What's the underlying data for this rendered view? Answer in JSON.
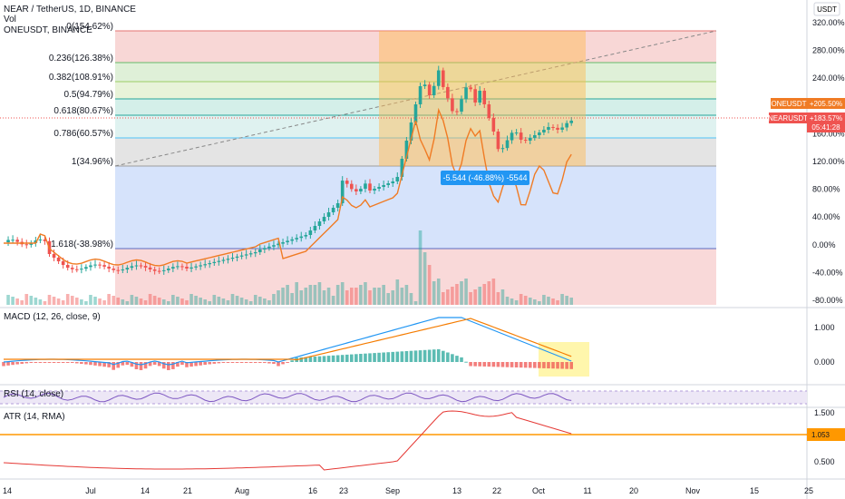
{
  "header": {
    "symbol_title": "NEAR / TetherUS, 1D, BINANCE",
    "vol_label": "Vol",
    "compare_title": "ONEUSDT, BINANCE",
    "currency_button": "USDT"
  },
  "colors": {
    "up": "#26a69a",
    "down": "#ef5350",
    "compare_line": "#f07b24",
    "macd_line": "#2196f3",
    "signal_line": "#f57c00",
    "atr_line": "#e53935",
    "rsi_line": "#7e57c2",
    "highlight": "#fff59d",
    "badge_near": "#ef5350",
    "badge_one": "#f07b24",
    "badge_measure": "#2196f3",
    "atr_level": "#ff9800"
  },
  "chart_data": [
    {
      "type": "candlestick",
      "pane": "price",
      "y_axis_mode": "percent",
      "y_ticks": [
        "320.00%",
        "280.00%",
        "240.00%",
        "200.00%",
        "160.00%",
        "120.00%",
        "80.00%",
        "40.00%",
        "0.00%",
        "-40.00%",
        "-80.00%"
      ],
      "x_ticks": [
        "14",
        "Jul",
        "14",
        "21",
        "Aug",
        "16",
        "23",
        "Sep",
        "13",
        "22",
        "Oct",
        "11",
        "20",
        "Nov",
        "15",
        "25"
      ],
      "series": [
        {
          "name": "NEARUSDT",
          "last_value_label": "+183.57%",
          "countdown": "05:41:28"
        },
        {
          "name": "ONEUSDT",
          "last_value_label": "+205.50%"
        }
      ],
      "fib_levels": [
        {
          "label": "0(154.62%)"
        },
        {
          "label": "0.236(126.38%)"
        },
        {
          "label": "0.382(108.91%)"
        },
        {
          "label": "0.5(94.79%)"
        },
        {
          "label": "0.618(80.67%)"
        },
        {
          "label": "0.786(60.57%)"
        },
        {
          "label": "1(34.96%)"
        },
        {
          "label": "1.618(-38.98%)"
        }
      ],
      "measure_label": "-5.544 (-46.88%) -5544"
    },
    {
      "type": "line",
      "pane": "macd",
      "title": "MACD (12, 26, close, 9)",
      "y_ticks": [
        "1.000",
        "0.000"
      ]
    },
    {
      "type": "line",
      "pane": "rsi",
      "title": "RSI (14, close)"
    },
    {
      "type": "line",
      "pane": "atr",
      "title": "ATR (14, RMA)",
      "y_ticks": [
        "1.500",
        "0.500"
      ],
      "last_value_label": "1.053"
    }
  ]
}
